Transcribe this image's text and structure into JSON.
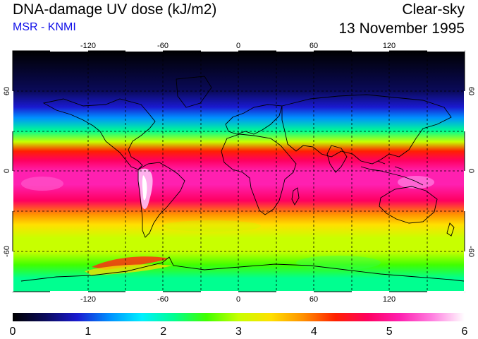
{
  "header": {
    "title": "DNA-damage UV dose (kJ/m2)",
    "subtitle": "MSR - KNMI",
    "mode": "Clear-sky",
    "date": "13 November 1995"
  },
  "map": {
    "projection": "equirectangular",
    "lon_range": [
      -180,
      180
    ],
    "lat_range": [
      -90,
      90
    ],
    "lon_ticks": [
      "-120",
      "-60",
      "0",
      "60",
      "120"
    ],
    "lat_ticks": [
      "60",
      "0",
      "-60"
    ],
    "grid_spacing_deg": 30,
    "gridlines": "dashed",
    "colors": {
      "band_stops": [
        {
          "lat": 90,
          "value": 0.0
        },
        {
          "lat": 60,
          "value": 0.3
        },
        {
          "lat": 48,
          "value": 0.9
        },
        {
          "lat": 40,
          "value": 1.4
        },
        {
          "lat": 30,
          "value": 2.2
        },
        {
          "lat": 22,
          "value": 3.0
        },
        {
          "lat": 15,
          "value": 4.1
        },
        {
          "lat": 8,
          "value": 4.6
        },
        {
          "lat": 0,
          "value": 5.0
        },
        {
          "lat": -10,
          "value": 5.2
        },
        {
          "lat": -22,
          "value": 4.6
        },
        {
          "lat": -32,
          "value": 4.0
        },
        {
          "lat": -40,
          "value": 3.6
        },
        {
          "lat": -50,
          "value": 3.2
        },
        {
          "lat": -60,
          "value": 2.8
        },
        {
          "lat": -70,
          "value": 2.5
        },
        {
          "lat": -80,
          "value": 2.2
        },
        {
          "lat": -90,
          "value": 2.0
        }
      ]
    }
  },
  "colorbar": {
    "min": 0,
    "max": 6,
    "labels": [
      "0",
      "1",
      "2",
      "3",
      "4",
      "5",
      "6"
    ],
    "colors": [
      "#000000",
      "#0a0a5a",
      "#1a1ad0",
      "#0090ff",
      "#00f0ff",
      "#00ff90",
      "#40ff00",
      "#c8ff00",
      "#ffe000",
      "#ff9000",
      "#ff2000",
      "#ff0060",
      "#ff20b0",
      "#ff80e0",
      "#ffffff"
    ]
  }
}
